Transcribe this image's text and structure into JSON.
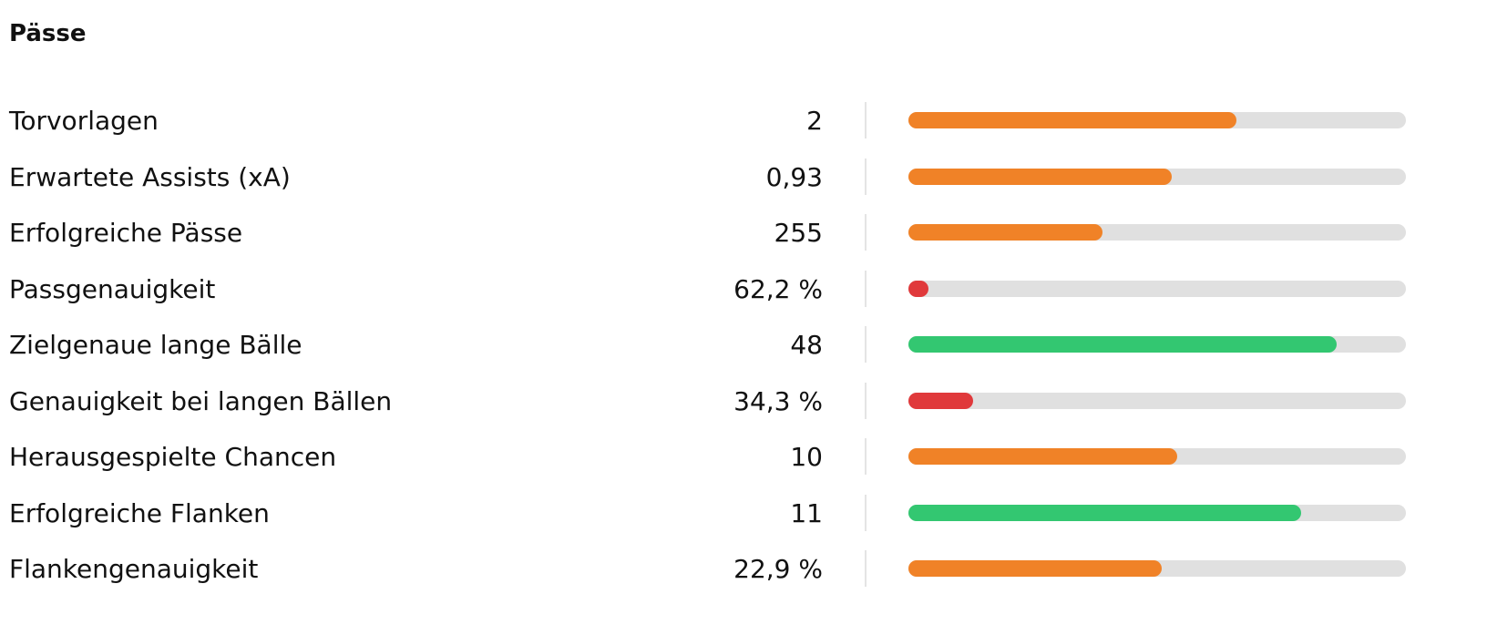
{
  "section": {
    "title": "Pässe",
    "scale": [
      0,
      100
    ],
    "rows": [
      {
        "label": "Torvorlagen",
        "value": "2",
        "percentile": 66,
        "color": "#f08227"
      },
      {
        "label": "Erwartete Assists (xA)",
        "value": "0,93",
        "percentile": 53,
        "color": "#f08227"
      },
      {
        "label": "Erfolgreiche Pässe",
        "value": "255",
        "percentile": 39,
        "color": "#f08227"
      },
      {
        "label": "Passgenauigkeit",
        "value": "62,2 %",
        "percentile": 4,
        "color": "#e0393b"
      },
      {
        "label": "Zielgenaue lange Bälle",
        "value": "48",
        "percentile": 86,
        "color": "#33c771"
      },
      {
        "label": "Genauigkeit bei langen Bällen",
        "value": "34,3 %",
        "percentile": 13,
        "color": "#e0393b"
      },
      {
        "label": "Herausgespielte Chancen",
        "value": "10",
        "percentile": 54,
        "color": "#f08227"
      },
      {
        "label": "Erfolgreiche Flanken",
        "value": "11",
        "percentile": 79,
        "color": "#33c771"
      },
      {
        "label": "Flankengenauigkeit",
        "value": "22,9 %",
        "percentile": 51,
        "color": "#f08227"
      }
    ]
  }
}
